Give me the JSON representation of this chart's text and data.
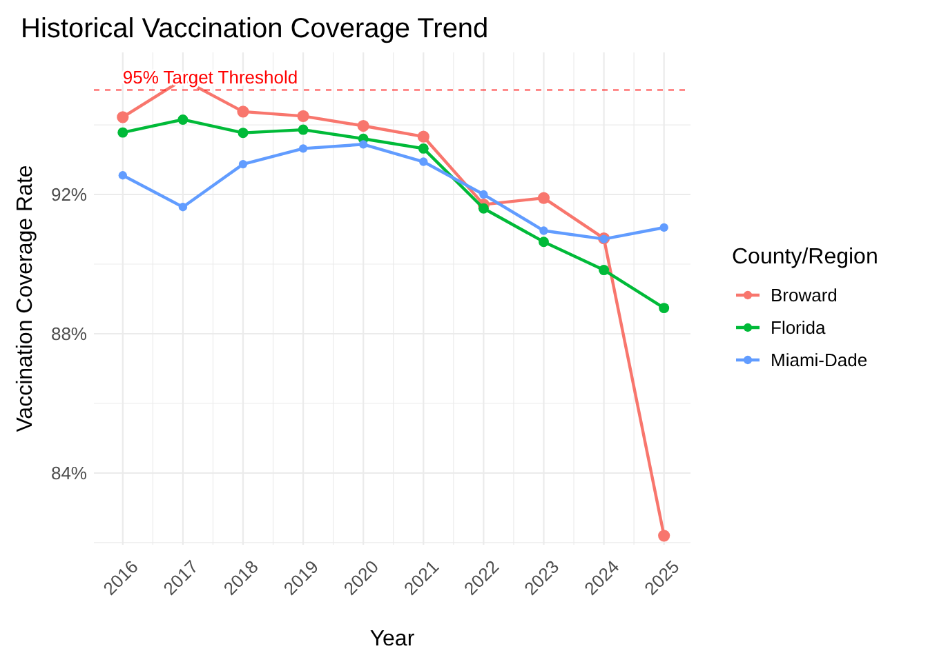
{
  "chart_data": {
    "type": "line",
    "title": "Historical Vaccination Coverage Trend",
    "xlabel": "Year",
    "ylabel": "Vaccination Coverage Rate",
    "legend_title": "County/Region",
    "x": [
      2016,
      2017,
      2018,
      2019,
      2020,
      2021,
      2022,
      2023,
      2024,
      2025
    ],
    "series": [
      {
        "name": "Broward",
        "color": "#f8766d",
        "values": [
          94.22,
          95.3,
          94.38,
          94.25,
          93.97,
          93.66,
          91.71,
          91.9,
          90.74,
          82.2
        ]
      },
      {
        "name": "Florida",
        "color": "#00ba38",
        "values": [
          93.78,
          94.15,
          93.77,
          93.86,
          93.6,
          93.32,
          91.6,
          90.64,
          89.83,
          88.74
        ]
      },
      {
        "name": "Miami-Dade",
        "color": "#619cff",
        "values": [
          92.55,
          91.64,
          92.87,
          93.32,
          93.44,
          92.94,
          92.0,
          90.96,
          90.72,
          91.05
        ]
      }
    ],
    "xlim": [
      2015.52,
      2025.44
    ],
    "xticks": [
      2016,
      2017,
      2018,
      2019,
      2020,
      2021,
      2022,
      2023,
      2024,
      2025,
      {
        "value": 2016.5,
        "label": null
      },
      {
        "value": 2017.5,
        "label": null
      },
      {
        "value": 2018.5,
        "label": null
      },
      {
        "value": 2019.5,
        "label": null
      },
      {
        "value": 2020.5,
        "label": null
      },
      {
        "value": 2021.5,
        "label": null
      },
      {
        "value": 2022.5,
        "label": null
      },
      {
        "value": 2023.5,
        "label": null
      },
      {
        "value": 2024.5,
        "label": null
      }
    ],
    "ylim": [
      81.94,
      96.08
    ],
    "yticks": [
      {
        "value": 84,
        "label": "84%"
      },
      {
        "value": 88,
        "label": "88%"
      },
      {
        "value": 92,
        "label": "92%"
      },
      {
        "value": 82,
        "label": null
      },
      {
        "value": 86,
        "label": null
      },
      {
        "value": 90,
        "label": null
      },
      {
        "value": 94,
        "label": null
      }
    ],
    "ref_lines": [
      {
        "axis": "y",
        "value": 95,
        "label": "95% Target Threshold",
        "color": "#ff0000",
        "line_style": "dashed"
      }
    ],
    "grid": true,
    "legend": "right",
    "marker": "circle",
    "line_style": "solid"
  }
}
